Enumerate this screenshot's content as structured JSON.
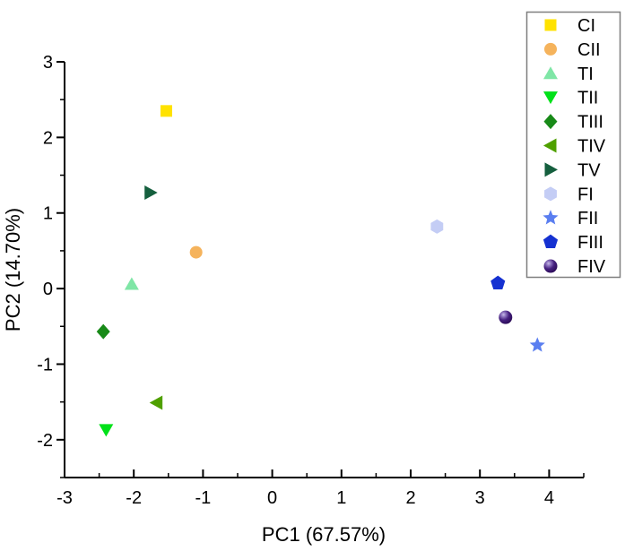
{
  "chart_data": {
    "type": "scatter",
    "title": "",
    "xlabel": "PC1 (67.57%)",
    "ylabel": "PC2 (14.70%)",
    "xlim": [
      -3,
      4.5
    ],
    "ylim": [
      -2.5,
      3
    ],
    "x_major_ticks": [
      -3,
      -2,
      -1,
      0,
      1,
      2,
      3,
      4
    ],
    "y_major_ticks": [
      -2,
      -1,
      0,
      1,
      2,
      3
    ],
    "minor_tick_step": 0.5,
    "grid": false,
    "legend_position": "top-right",
    "legend_border_color": "#7f7f7f",
    "axis_color": "#000000",
    "series": [
      {
        "name": "CI",
        "marker": "square",
        "color": "#FFE200",
        "points": [
          [
            -1.53,
            2.35
          ]
        ]
      },
      {
        "name": "CII",
        "marker": "circle",
        "color": "#F5B35C",
        "points": [
          [
            -1.1,
            0.48
          ]
        ]
      },
      {
        "name": "TI",
        "marker": "triangle-up",
        "color": "#7FE6A6",
        "points": [
          [
            -2.03,
            0.06
          ]
        ]
      },
      {
        "name": "TII",
        "marker": "triangle-down",
        "color": "#00E119",
        "points": [
          [
            -2.4,
            -1.87
          ]
        ]
      },
      {
        "name": "TIII",
        "marker": "diamond",
        "color": "#188A18",
        "points": [
          [
            -2.44,
            -0.57
          ]
        ]
      },
      {
        "name": "TIV",
        "marker": "triangle-left",
        "color": "#4FA000",
        "points": [
          [
            -1.67,
            -1.51
          ]
        ]
      },
      {
        "name": "TV",
        "marker": "triangle-right",
        "color": "#155F3E",
        "points": [
          [
            -1.76,
            1.27
          ]
        ]
      },
      {
        "name": "FI",
        "marker": "hexagon",
        "color": "#C4CDF5",
        "points": [
          [
            2.38,
            0.82
          ]
        ]
      },
      {
        "name": "FII",
        "marker": "star",
        "color": "#5A7EF0",
        "points": [
          [
            3.83,
            -0.75
          ]
        ]
      },
      {
        "name": "FIII",
        "marker": "pentagon",
        "color": "#1531D1",
        "points": [
          [
            3.26,
            0.07
          ]
        ]
      },
      {
        "name": "FIV",
        "marker": "sphere",
        "color": "#36106B",
        "highlight": "#C8BCE8",
        "points": [
          [
            3.37,
            -0.38
          ]
        ]
      }
    ]
  }
}
